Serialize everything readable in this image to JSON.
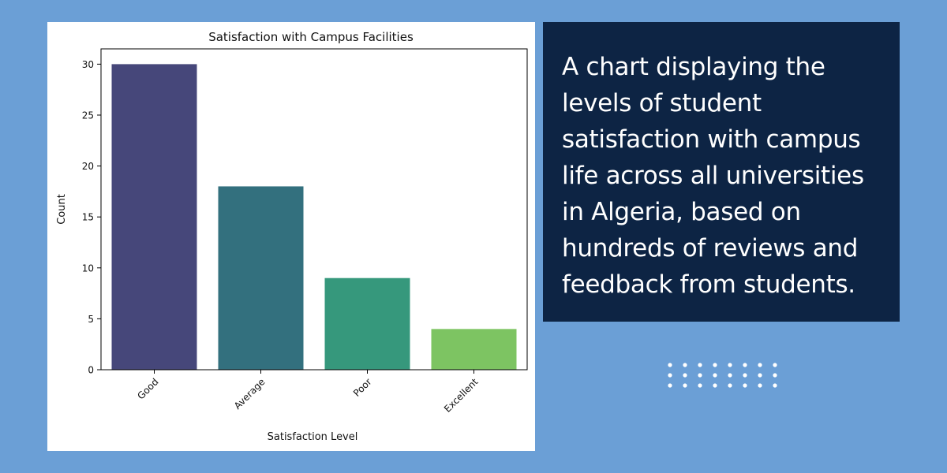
{
  "theme": {
    "background": "#6b9fd6",
    "panel": "#0d2444",
    "panel_text": "#ffffff"
  },
  "description": "A chart displaying the levels of student satisfaction with campus life across all universities in Algeria, based on hundreds of reviews and feedback from students.",
  "chart_data": {
    "type": "bar",
    "title": "Satisfaction with Campus Facilities",
    "xlabel": "Satisfaction Level",
    "ylabel": "Count",
    "categories": [
      "Good",
      "Average",
      "Poor",
      "Excellent"
    ],
    "values": [
      30,
      18,
      9,
      4
    ],
    "colors": [
      "#46477a",
      "#33707e",
      "#36987c",
      "#7dc462"
    ],
    "ylim": [
      0,
      31.5
    ],
    "yticks": [
      0,
      5,
      10,
      15,
      20,
      25,
      30
    ],
    "grid": false,
    "legend": "none"
  }
}
